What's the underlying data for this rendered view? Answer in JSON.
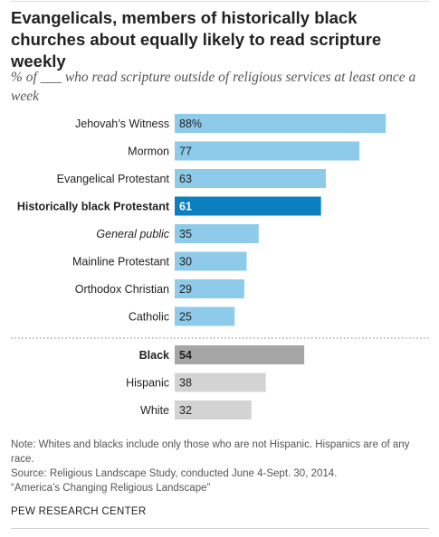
{
  "title": "Evangelicals, members of historically black churches about equally likely to read scripture weekly",
  "subtitle": "% of ___ who read scripture outside of religious services at least once a week",
  "colors": {
    "religion_bar": "#8ecae9",
    "highlight_bar": "#0b7fbf",
    "race_bar": "#d3d3d3",
    "race_highlight_bar": "#a6a6a6",
    "highlight_text": "#ffffff"
  },
  "chart_data": {
    "type": "bar",
    "orientation": "horizontal",
    "xlim": [
      0,
      100
    ],
    "groups": [
      {
        "rows": [
          {
            "label": "Jehovah’s Witness",
            "value": 88,
            "value_label": "88%"
          },
          {
            "label": "Mormon",
            "value": 77,
            "value_label": "77"
          },
          {
            "label": "Evangelical Protestant",
            "value": 63,
            "value_label": "63"
          },
          {
            "label": "Historically black Protestant",
            "value": 61,
            "value_label": "61",
            "highlight": true
          },
          {
            "label": "General public",
            "value": 35,
            "value_label": "35",
            "italic": true
          },
          {
            "label": "Mainline Protestant",
            "value": 30,
            "value_label": "30"
          },
          {
            "label": "Orthodox Christian",
            "value": 29,
            "value_label": "29"
          },
          {
            "label": "Catholic",
            "value": 25,
            "value_label": "25"
          }
        ]
      },
      {
        "rows": [
          {
            "label": "Black",
            "value": 54,
            "value_label": "54",
            "highlight": true
          },
          {
            "label": "Hispanic",
            "value": 38,
            "value_label": "38"
          },
          {
            "label": "White",
            "value": 32,
            "value_label": "32"
          }
        ]
      }
    ]
  },
  "note": "Note: Whites and blacks include only those who are not Hispanic. Hispanics are of any race.",
  "source": "Source: Religious Landscape Study, conducted June 4-Sept. 30, 2014.",
  "report": "“America’s Changing Religious Landscape”",
  "brand": "PEW RESEARCH CENTER"
}
